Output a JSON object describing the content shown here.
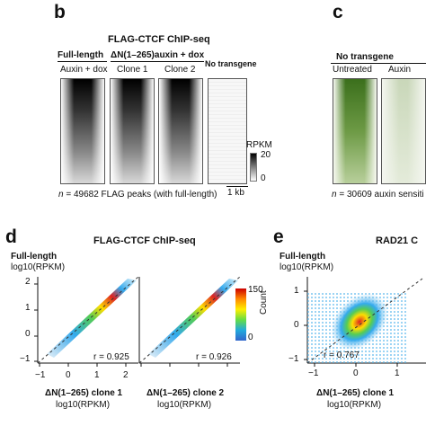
{
  "panel_b": {
    "letter": "b",
    "title": "FLAG-CTCF ChIP-seq",
    "full_length": "Full-length",
    "delta_header": "ΔN(1–265)auxin + dox",
    "no_transgene": "No transgene",
    "col_labels": [
      "Auxin + dox",
      "Clone 1",
      "Clone 2"
    ],
    "legend_title": "RPKM",
    "legend_max": "20",
    "legend_min": "0",
    "scale_label": "1 kb",
    "caption_n": "n",
    "caption_rest": " = 49682 FLAG peaks (with full-length)"
  },
  "panel_c": {
    "letter": "c",
    "no_transgene": "No transgene",
    "col_labels": [
      "Untreated",
      "Auxin"
    ],
    "caption_n": "n",
    "caption_rest": " = 30609 auxin sensiti"
  },
  "panel_d": {
    "letter": "d",
    "title": "FLAG-CTCF ChIP-seq",
    "ylabel_1": "Full-length",
    "ylabel_2": "log10(RPKM)",
    "colorbar_title": "Count",
    "colorbar_max": "150",
    "colorbar_min": "0",
    "plots": [
      {
        "r_label": "r = 0.925",
        "xlabel_1": "ΔN(1–265) clone 1",
        "xlabel_2": "log10(RPKM)"
      },
      {
        "r_label": "r = 0.926",
        "xlabel_1": "ΔN(1–265) clone 2",
        "xlabel_2": "log10(RPKM)"
      }
    ],
    "y_ticks": [
      "2",
      "1",
      "0",
      "−1"
    ],
    "x_ticks": [
      "−1",
      "0",
      "1",
      "2"
    ]
  },
  "panel_e": {
    "letter": "e",
    "title": "RAD21 C",
    "ylabel_1": "Full-length",
    "ylabel_2": "log10(RPKM)",
    "r_label": "r = 0.767",
    "xlabel_1": "ΔN(1–265) clone 1",
    "xlabel_2": "log10(RPKM)",
    "y_ticks": [
      "1",
      "0",
      "−1"
    ],
    "x_ticks": [
      "−1",
      "0",
      "1"
    ]
  }
}
